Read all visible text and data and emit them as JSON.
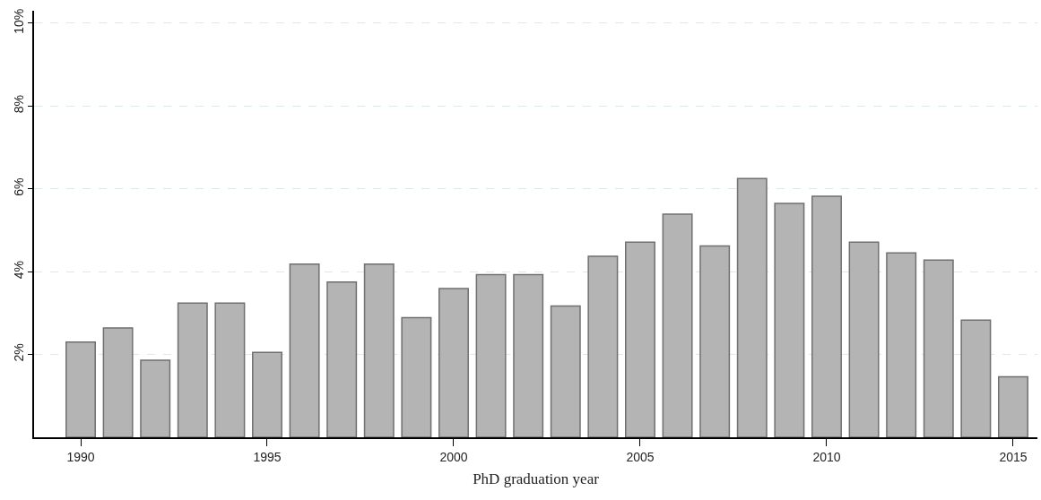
{
  "chart_data": {
    "type": "bar",
    "xlabel": "PhD graduation year",
    "x": [
      1990,
      1991,
      1992,
      1993,
      1994,
      1995,
      1996,
      1997,
      1998,
      1999,
      2000,
      2001,
      2002,
      2003,
      2004,
      2005,
      2006,
      2007,
      2008,
      2009,
      2010,
      2011,
      2012,
      2013,
      2014,
      2015
    ],
    "values": [
      2.3,
      2.64,
      1.86,
      3.24,
      3.24,
      2.05,
      4.18,
      3.75,
      4.18,
      2.89,
      3.59,
      3.93,
      3.93,
      3.17,
      4.37,
      4.71,
      5.39,
      4.62,
      6.25,
      5.65,
      5.82,
      4.71,
      4.45,
      4.28,
      2.83,
      1.46
    ],
    "color": "#b4b4b4",
    "xlim": [
      1988.75,
      2015.65
    ],
    "xticks": [
      1990,
      1995,
      2000,
      2005,
      2010,
      2015
    ],
    "ylim": [
      0,
      10.3
    ],
    "yticks": [
      {
        "value": 2,
        "label": "2%"
      },
      {
        "value": 4,
        "label": "4%"
      },
      {
        "value": 6,
        "label": "6%"
      },
      {
        "value": 8,
        "label": "8%"
      },
      {
        "value": 10,
        "label": "10%"
      }
    ],
    "grid": "y"
  }
}
